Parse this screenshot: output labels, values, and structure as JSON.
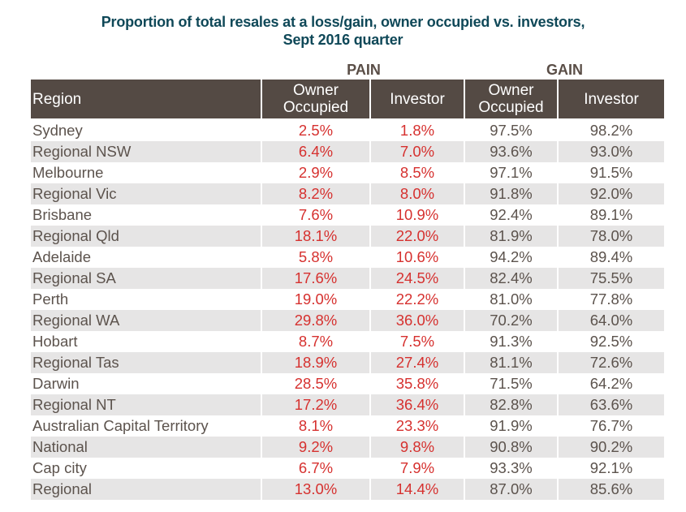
{
  "title": {
    "line1": "Proportion of total resales at a loss/gain, owner occupied vs. investors,",
    "line2": "Sept 2016 quarter"
  },
  "groups": {
    "pain": "PAIN",
    "gain": "GAIN"
  },
  "headers": {
    "region": "Region",
    "pain_owner_line1": "Owner",
    "pain_owner_line2": "Occupied",
    "pain_investor": "Investor",
    "gain_owner_line1": "Owner",
    "gain_owner_line2": "Occupied",
    "gain_investor": "Investor"
  },
  "colors": {
    "title": "#0f4858",
    "header_bg": "#544a44",
    "pain_text": "#d6312f",
    "gain_text": "#5c534d",
    "stripe": "#e6e5e5"
  },
  "rows": [
    {
      "region": "Sydney",
      "pain_owner": "2.5%",
      "pain_investor": "1.8%",
      "gain_owner": "97.5%",
      "gain_investor": "98.2%"
    },
    {
      "region": "Regional NSW",
      "pain_owner": "6.4%",
      "pain_investor": "7.0%",
      "gain_owner": "93.6%",
      "gain_investor": "93.0%"
    },
    {
      "region": "Melbourne",
      "pain_owner": "2.9%",
      "pain_investor": "8.5%",
      "gain_owner": "97.1%",
      "gain_investor": "91.5%"
    },
    {
      "region": "Regional Vic",
      "pain_owner": "8.2%",
      "pain_investor": "8.0%",
      "gain_owner": "91.8%",
      "gain_investor": "92.0%"
    },
    {
      "region": "Brisbane",
      "pain_owner": "7.6%",
      "pain_investor": "10.9%",
      "gain_owner": "92.4%",
      "gain_investor": "89.1%"
    },
    {
      "region": "Regional Qld",
      "pain_owner": "18.1%",
      "pain_investor": "22.0%",
      "gain_owner": "81.9%",
      "gain_investor": "78.0%"
    },
    {
      "region": "Adelaide",
      "pain_owner": "5.8%",
      "pain_investor": "10.6%",
      "gain_owner": "94.2%",
      "gain_investor": "89.4%"
    },
    {
      "region": "Regional SA",
      "pain_owner": "17.6%",
      "pain_investor": "24.5%",
      "gain_owner": "82.4%",
      "gain_investor": "75.5%"
    },
    {
      "region": "Perth",
      "pain_owner": "19.0%",
      "pain_investor": "22.2%",
      "gain_owner": "81.0%",
      "gain_investor": "77.8%"
    },
    {
      "region": "Regional WA",
      "pain_owner": "29.8%",
      "pain_investor": "36.0%",
      "gain_owner": "70.2%",
      "gain_investor": "64.0%"
    },
    {
      "region": "Hobart",
      "pain_owner": "8.7%",
      "pain_investor": "7.5%",
      "gain_owner": "91.3%",
      "gain_investor": "92.5%"
    },
    {
      "region": "Regional Tas",
      "pain_owner": "18.9%",
      "pain_investor": "27.4%",
      "gain_owner": "81.1%",
      "gain_investor": "72.6%"
    },
    {
      "region": "Darwin",
      "pain_owner": "28.5%",
      "pain_investor": "35.8%",
      "gain_owner": "71.5%",
      "gain_investor": "64.2%"
    },
    {
      "region": "Regional NT",
      "pain_owner": "17.2%",
      "pain_investor": "36.4%",
      "gain_owner": "82.8%",
      "gain_investor": "63.6%"
    },
    {
      "region": "Australian Capital Territory",
      "pain_owner": "8.1%",
      "pain_investor": "23.3%",
      "gain_owner": "91.9%",
      "gain_investor": "76.7%"
    },
    {
      "region": "National",
      "pain_owner": "9.2%",
      "pain_investor": "9.8%",
      "gain_owner": "90.8%",
      "gain_investor": "90.2%"
    },
    {
      "region": "Cap city",
      "pain_owner": "6.7%",
      "pain_investor": "7.9%",
      "gain_owner": "93.3%",
      "gain_investor": "92.1%"
    },
    {
      "region": "Regional",
      "pain_owner": "13.0%",
      "pain_investor": "14.4%",
      "gain_owner": "87.0%",
      "gain_investor": "85.6%"
    }
  ]
}
